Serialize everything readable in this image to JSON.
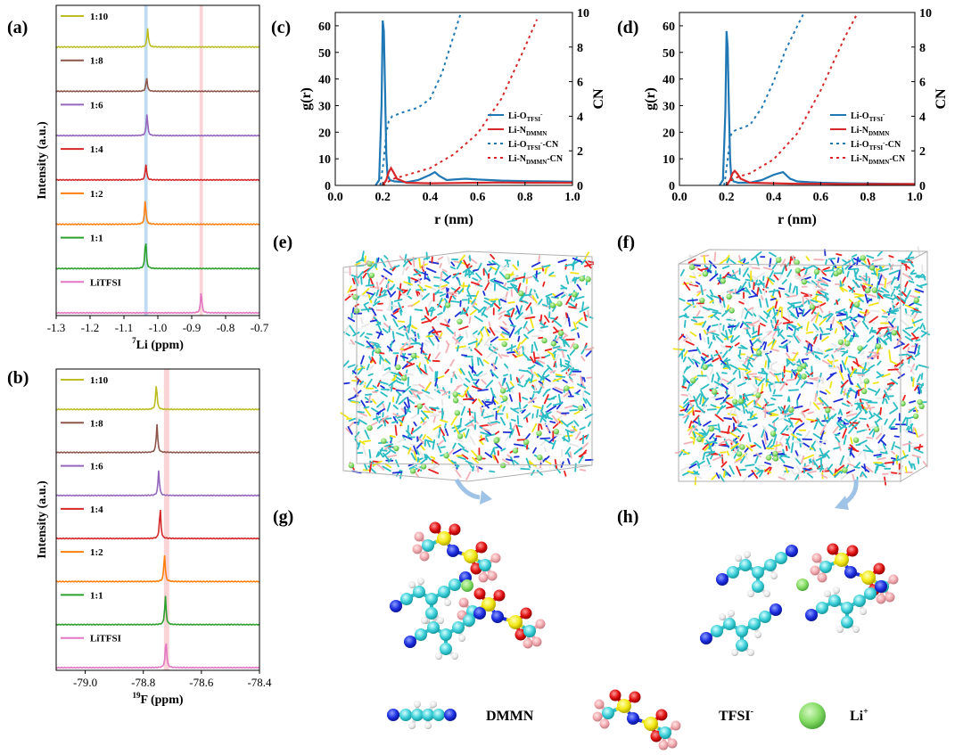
{
  "panel_labels": {
    "a": "(a)",
    "b": "(b)",
    "c": "(c)",
    "d": "(d)",
    "e": "(e)",
    "f": "(f)",
    "g": "(g)",
    "h": "(h)"
  },
  "colors": {
    "olive": "#bcbd22",
    "brown": "#8c564b",
    "purple": "#9467bd",
    "red": "#d62728",
    "orange": "#ff7f0e",
    "green": "#2ca02c",
    "pink": "#e377c2",
    "blue": "#1f77b4",
    "crimson": "#d62728",
    "highlight_blue": "#bfdcf2",
    "highlight_pink": "#f9d3d6"
  },
  "chart_data": [
    {
      "id": "a",
      "type": "line",
      "ylabel": "Intensity (a.u.)",
      "xlabel_sup": "7",
      "xlabel": "Li (ppm)",
      "xlim": [
        -1.3,
        -0.7
      ],
      "xticks": [
        "-1.3",
        "-1.2",
        "-1.1",
        "-1.0",
        "-0.9",
        "-0.8",
        "-0.7"
      ],
      "highlight_bands": [
        {
          "center": -1.035,
          "width": 0.01,
          "color": "#bfdcf2"
        },
        {
          "center": -0.872,
          "width": 0.01,
          "color": "#f9d3d6"
        }
      ],
      "series": [
        {
          "name": "1:10",
          "peak": -1.03,
          "height": 0.55,
          "color": "#bcbd22"
        },
        {
          "name": "1:8",
          "peak": -1.033,
          "height": 0.4,
          "color": "#8c564b"
        },
        {
          "name": "1:6",
          "peak": -1.032,
          "height": 0.65,
          "color": "#9467bd"
        },
        {
          "name": "1:4",
          "peak": -1.035,
          "height": 0.45,
          "color": "#d62728"
        },
        {
          "name": "1:2",
          "peak": -1.037,
          "height": 0.7,
          "color": "#ff7f0e"
        },
        {
          "name": "1:1",
          "peak": -1.036,
          "height": 0.85,
          "color": "#2ca02c"
        },
        {
          "name": "LiTFSI",
          "peak": -0.872,
          "height": 0.6,
          "color": "#e377c2"
        }
      ]
    },
    {
      "id": "b",
      "type": "line",
      "ylabel": "Intensity (a.u.)",
      "xlabel_sup": "19",
      "xlabel": "F (ppm)",
      "xlim": [
        -79.1,
        -78.4
      ],
      "xticks": [
        "-79.0",
        "-78.8",
        "-78.6",
        "-78.4"
      ],
      "xtick_values": [
        -79.0,
        -78.8,
        -78.6,
        -78.4
      ],
      "highlight_bands": [
        {
          "center": -78.72,
          "width": 0.018,
          "color": "#f9d3d6"
        }
      ],
      "series": [
        {
          "name": "1:10",
          "peak": -78.755,
          "height": 0.75,
          "color": "#bcbd22"
        },
        {
          "name": "1:8",
          "peak": -78.753,
          "height": 0.85,
          "color": "#8c564b"
        },
        {
          "name": "1:6",
          "peak": -78.747,
          "height": 0.75,
          "color": "#9467bd"
        },
        {
          "name": "1:4",
          "peak": -78.742,
          "height": 0.9,
          "color": "#d62728"
        },
        {
          "name": "1:2",
          "peak": -78.727,
          "height": 0.8,
          "color": "#ff7f0e"
        },
        {
          "name": "1:1",
          "peak": -78.724,
          "height": 0.85,
          "color": "#2ca02c"
        },
        {
          "name": "LiTFSI",
          "peak": -78.722,
          "height": 0.85,
          "color": "#e377c2"
        }
      ]
    },
    {
      "id": "c",
      "type": "line",
      "xlabel": "r (nm)",
      "ylabel": "g(r)",
      "ylabel2": "CN",
      "xlim": [
        0,
        1.0
      ],
      "ylim": [
        0,
        65
      ],
      "y2lim": [
        0,
        10
      ],
      "xticks": [
        "0.0",
        "0.2",
        "0.4",
        "0.6",
        "0.8",
        "1.0"
      ],
      "yticks": [
        "0",
        "10",
        "20",
        "30",
        "40",
        "50",
        "60"
      ],
      "y2ticks": [
        "0",
        "2",
        "4",
        "6",
        "8",
        "10"
      ],
      "legend": [
        {
          "main": "Li-O",
          "sub": "TFSI",
          "supm": "-",
          "suffix": "",
          "style": "solid",
          "color": "#1f77b4"
        },
        {
          "main": "Li-N",
          "sub": "DMMN",
          "supm": "",
          "suffix": "",
          "style": "solid",
          "color": "#d62728"
        },
        {
          "main": "Li-O",
          "sub": "TFSI",
          "supm": "-",
          "suffix": "-CN",
          "style": "dotted",
          "color": "#1f77b4"
        },
        {
          "main": "Li-N",
          "sub": "DMMN",
          "supm": "",
          "suffix": "-CN",
          "style": "dotted",
          "color": "#d62728"
        }
      ],
      "series": [
        {
          "name": "Li-O g(r)",
          "axis": "left",
          "style": "solid",
          "color": "#1f77b4",
          "x": [
            0.17,
            0.185,
            0.195,
            0.2,
            0.205,
            0.21,
            0.215,
            0.22,
            0.23,
            0.25,
            0.3,
            0.35,
            0.4,
            0.42,
            0.44,
            0.47,
            0.5,
            0.55,
            0.6,
            0.7,
            0.8,
            0.9,
            1.0
          ],
          "y": [
            0,
            2,
            30,
            62,
            58,
            35,
            12,
            4,
            2,
            1.5,
            1.2,
            2,
            4,
            5,
            3.5,
            2,
            2.2,
            2.5,
            2.2,
            1.8,
            1.6,
            1.5,
            1.4
          ]
        },
        {
          "name": "Li-N g(r)",
          "axis": "left",
          "style": "solid",
          "color": "#d62728",
          "x": [
            0.2,
            0.215,
            0.225,
            0.235,
            0.245,
            0.26,
            0.3,
            0.4,
            0.5,
            0.6,
            0.7,
            0.8,
            0.9,
            1.0
          ],
          "y": [
            0,
            2,
            5,
            6.5,
            5,
            2.5,
            1,
            0.8,
            0.9,
            1,
            1.1,
            1,
            1,
            1
          ]
        },
        {
          "name": "Li-O CN",
          "axis": "right",
          "style": "dotted",
          "color": "#1f77b4",
          "x": [
            0.19,
            0.205,
            0.215,
            0.225,
            0.24,
            0.26,
            0.3,
            0.35,
            0.4,
            0.45,
            0.5,
            0.53
          ],
          "y": [
            0,
            1.5,
            3.0,
            3.7,
            4.0,
            4.1,
            4.3,
            4.5,
            5.0,
            6.5,
            8.7,
            10
          ]
        },
        {
          "name": "Li-N CN",
          "axis": "right",
          "style": "dotted",
          "color": "#d62728",
          "x": [
            0.2,
            0.22,
            0.25,
            0.3,
            0.4,
            0.5,
            0.6,
            0.7,
            0.8,
            0.85
          ],
          "y": [
            0,
            0.2,
            0.4,
            0.6,
            1.0,
            1.8,
            3.0,
            5.0,
            8.0,
            9.6
          ]
        }
      ]
    },
    {
      "id": "d",
      "type": "line",
      "xlabel": "r (nm)",
      "ylabel": "g(r)",
      "ylabel2": "CN",
      "xlim": [
        0,
        1.0
      ],
      "ylim": [
        0,
        65
      ],
      "y2lim": [
        0,
        10
      ],
      "xticks": [
        "0.0",
        "0.2",
        "0.4",
        "0.6",
        "0.8",
        "1.0"
      ],
      "yticks": [
        "0",
        "10",
        "20",
        "30",
        "40",
        "50",
        "60"
      ],
      "y2ticks": [
        "0",
        "2",
        "4",
        "6",
        "8",
        "10"
      ],
      "legend": [
        {
          "main": "Li-O",
          "sub": "TFSI",
          "supm": "-",
          "suffix": "",
          "style": "solid",
          "color": "#1f77b4"
        },
        {
          "main": "Li-N",
          "sub": "DMMN",
          "supm": "",
          "suffix": "",
          "style": "solid",
          "color": "#d62728"
        },
        {
          "main": "Li-O",
          "sub": "TFSI",
          "supm": "-",
          "suffix": "-CN",
          "style": "dotted",
          "color": "#1f77b4"
        },
        {
          "main": "Li-N",
          "sub": "DMMN",
          "supm": "",
          "suffix": "-CN",
          "style": "dotted",
          "color": "#d62728"
        }
      ],
      "series": [
        {
          "name": "Li-O g(r)",
          "axis": "left",
          "style": "solid",
          "color": "#1f77b4",
          "x": [
            0.17,
            0.185,
            0.195,
            0.2,
            0.205,
            0.21,
            0.215,
            0.22,
            0.23,
            0.25,
            0.3,
            0.35,
            0.4,
            0.42,
            0.44,
            0.47,
            0.5,
            0.55,
            0.6,
            0.7,
            0.8,
            0.9,
            1.0
          ],
          "y": [
            0,
            2,
            28,
            58,
            52,
            30,
            10,
            3,
            1.5,
            1,
            1,
            2,
            4,
            4.5,
            5,
            2.5,
            1.5,
            1.2,
            1,
            0.8,
            0.7,
            0.6,
            0.5
          ]
        },
        {
          "name": "Li-N g(r)",
          "axis": "left",
          "style": "solid",
          "color": "#d62728",
          "x": [
            0.2,
            0.215,
            0.225,
            0.235,
            0.245,
            0.26,
            0.3,
            0.4,
            0.5,
            0.6,
            0.7,
            0.8,
            0.9,
            1.0
          ],
          "y": [
            0,
            2,
            4.5,
            5.5,
            4.5,
            2.5,
            1,
            0.8,
            0.6,
            0.6,
            0.5,
            0.5,
            0.5,
            0.5
          ]
        },
        {
          "name": "Li-O CN",
          "axis": "right",
          "style": "dotted",
          "color": "#1f77b4",
          "x": [
            0.19,
            0.205,
            0.215,
            0.225,
            0.24,
            0.26,
            0.3,
            0.35,
            0.4,
            0.45,
            0.5,
            0.53
          ],
          "y": [
            0,
            1.5,
            2.8,
            3.1,
            3.2,
            3.3,
            3.5,
            4.5,
            6.0,
            7.8,
            9.2,
            10
          ]
        },
        {
          "name": "Li-N CN",
          "axis": "right",
          "style": "dotted",
          "color": "#d62728",
          "x": [
            0.2,
            0.22,
            0.25,
            0.3,
            0.4,
            0.5,
            0.6,
            0.7,
            0.75
          ],
          "y": [
            0,
            0.3,
            0.5,
            0.7,
            1.5,
            3.0,
            5.5,
            8.5,
            9.8
          ]
        }
      ]
    }
  ],
  "legend_bottom": {
    "dmmn": "DMMN",
    "tfsi": "TFSI",
    "tfsi_sup": "-",
    "li": "Li",
    "li_sup": "+"
  }
}
